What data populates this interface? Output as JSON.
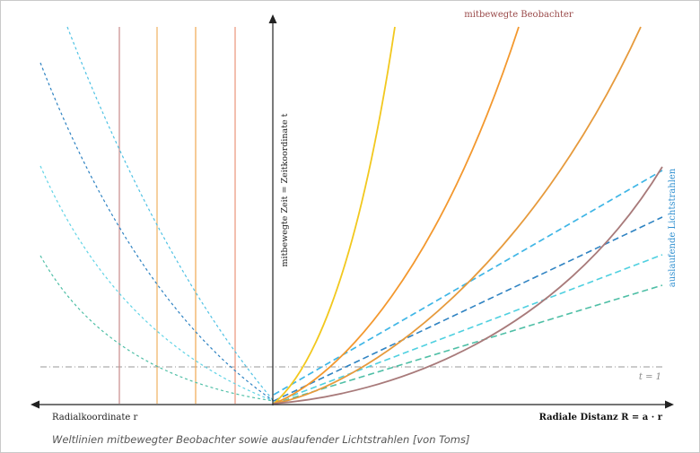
{
  "labels": {
    "time_axis": "mitbewegte  Zeit = Zeitkoordinate  t",
    "comoving_observers": "mitbewegte  Beobachter",
    "light_rays": "auslaufende  Lichtstrahlen",
    "t_marker": "t = 1",
    "radial_coordinate": "Radialkoordinate  r",
    "radial_distance": "Radiale Distanz R = a · r"
  },
  "caption": "Weltlinien mitbewegter Beobachter sowie auslaufender Lichtstrahlen [von Toms]",
  "colors": {
    "axis": "#222222",
    "yellow": "#f2c81e",
    "orange": "#f3982e",
    "light_orange": "#e69a3c",
    "brown": "#a87a7a",
    "light_blue": "#3fb6e6",
    "mid_blue": "#2f83c2",
    "cyan": "#4fd0e0",
    "teal": "#4fbfa6",
    "pink_vertical": "#c98a8a",
    "orange_vertical": "#f0b060",
    "gray_dashdot": "#9a9a9a"
  }
}
